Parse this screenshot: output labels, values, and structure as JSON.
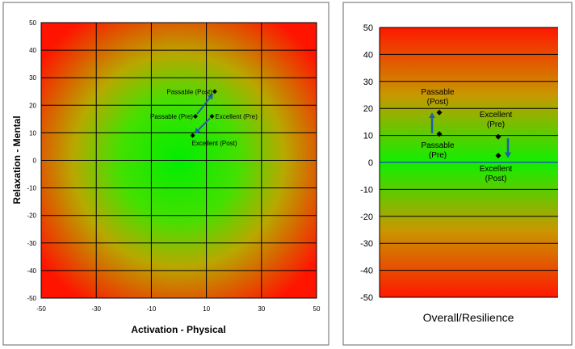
{
  "chart_data": [
    {
      "type": "scatter",
      "xlabel": "Activation - Physical",
      "ylabel": "Relaxation - Mental",
      "xlim": [
        -50,
        50
      ],
      "ylim": [
        -50,
        50
      ],
      "xticks": [
        -50,
        -30,
        -10,
        10,
        30,
        50
      ],
      "yticks": [
        50,
        40,
        30,
        20,
        10,
        0,
        -10,
        -20,
        -30,
        -40,
        -50
      ],
      "grid": true,
      "background": "radial green center to red edges",
      "points": [
        {
          "label": "Passable (Post)",
          "x": 13,
          "y": 25
        },
        {
          "label": "Passable (Pre)",
          "x": 6,
          "y": 16
        },
        {
          "label": "Excellent (Pre)",
          "x": 12,
          "y": 16
        },
        {
          "label": "Excellent (Post)",
          "x": 5,
          "y": 9
        }
      ],
      "arrows": [
        {
          "from": "Passable (Pre)",
          "to": "Passable (Post)"
        },
        {
          "from": "Excellent (Pre)",
          "to": "Excellent (Post)"
        }
      ],
      "colors": {
        "marker": "#000000",
        "arrow": "#1f5fa8",
        "grid": "#000000"
      }
    },
    {
      "type": "scatter",
      "xlabel": "Overall/Resilience",
      "ylim": [
        -50,
        50
      ],
      "yticks": [
        50,
        40,
        30,
        20,
        10,
        0,
        -10,
        -20,
        -30,
        -40,
        -50
      ],
      "grid": true,
      "background": "vertical gradient green center to red edges",
      "points": [
        {
          "label": "Passable (Post)",
          "group": "Passable",
          "y": 18.5
        },
        {
          "label": "Passable (Pre)",
          "group": "Passable",
          "y": 10.5
        },
        {
          "label": "Excellent (Pre)",
          "group": "Excellent",
          "y": 9.5
        },
        {
          "label": "Excellent (Post)",
          "group": "Excellent",
          "y": 2.5
        }
      ],
      "annotations": [
        {
          "line1": "Passable",
          "line2": "(Post)"
        },
        {
          "line1": "Passable",
          "line2": "(Pre)"
        },
        {
          "line1": "Excellent",
          "line2": "(Pre)"
        },
        {
          "line1": "Excellent",
          "line2": "(Post)"
        }
      ],
      "colors": {
        "marker": "#000000",
        "arrow": "#1f5fa8",
        "grid": "#000000",
        "zero_line": "#1f5fa8"
      }
    }
  ]
}
